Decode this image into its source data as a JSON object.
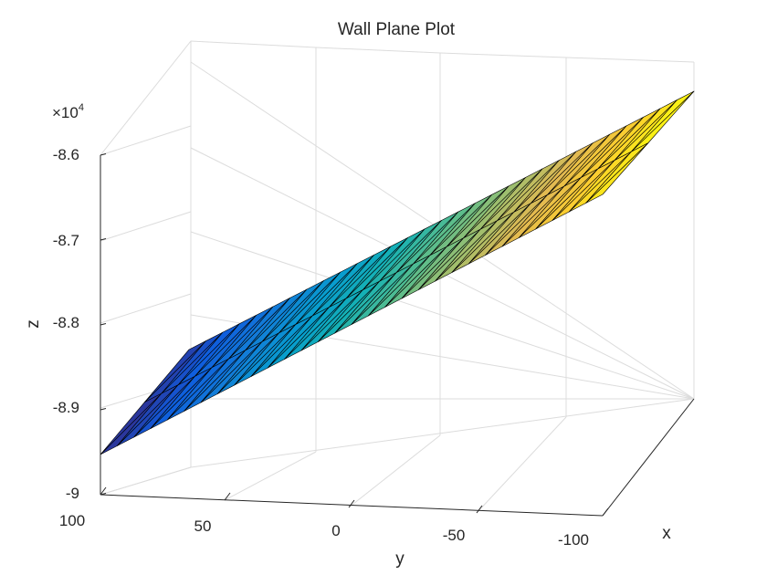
{
  "chart_data": {
    "type": "surface",
    "title": "Wall Plane Plot",
    "xlabel": "x",
    "ylabel": "y",
    "zlabel": "z",
    "z_exponent_label": "×10",
    "z_exponent_power": "4",
    "y_ticks": [
      "100",
      "50",
      "0",
      "-50",
      "-100"
    ],
    "z_ticks": [
      "-8.6",
      "-8.7",
      "-8.8",
      "-8.9",
      "-9"
    ],
    "z_tick_values": [
      -86000,
      -87000,
      -88000,
      -89000,
      -90000
    ],
    "y_range": [
      -100,
      100
    ],
    "z_range": [
      -90000,
      -86000
    ],
    "grid": true,
    "colormap": "parula",
    "surface_corners": [
      {
        "corner": "y=100 near",
        "z": -89600
      },
      {
        "corner": "y=100 far",
        "z": -88350
      },
      {
        "corner": "y=-100 far",
        "z": -86650
      },
      {
        "corner": "y=-100 near",
        "z": -85700
      }
    ]
  }
}
